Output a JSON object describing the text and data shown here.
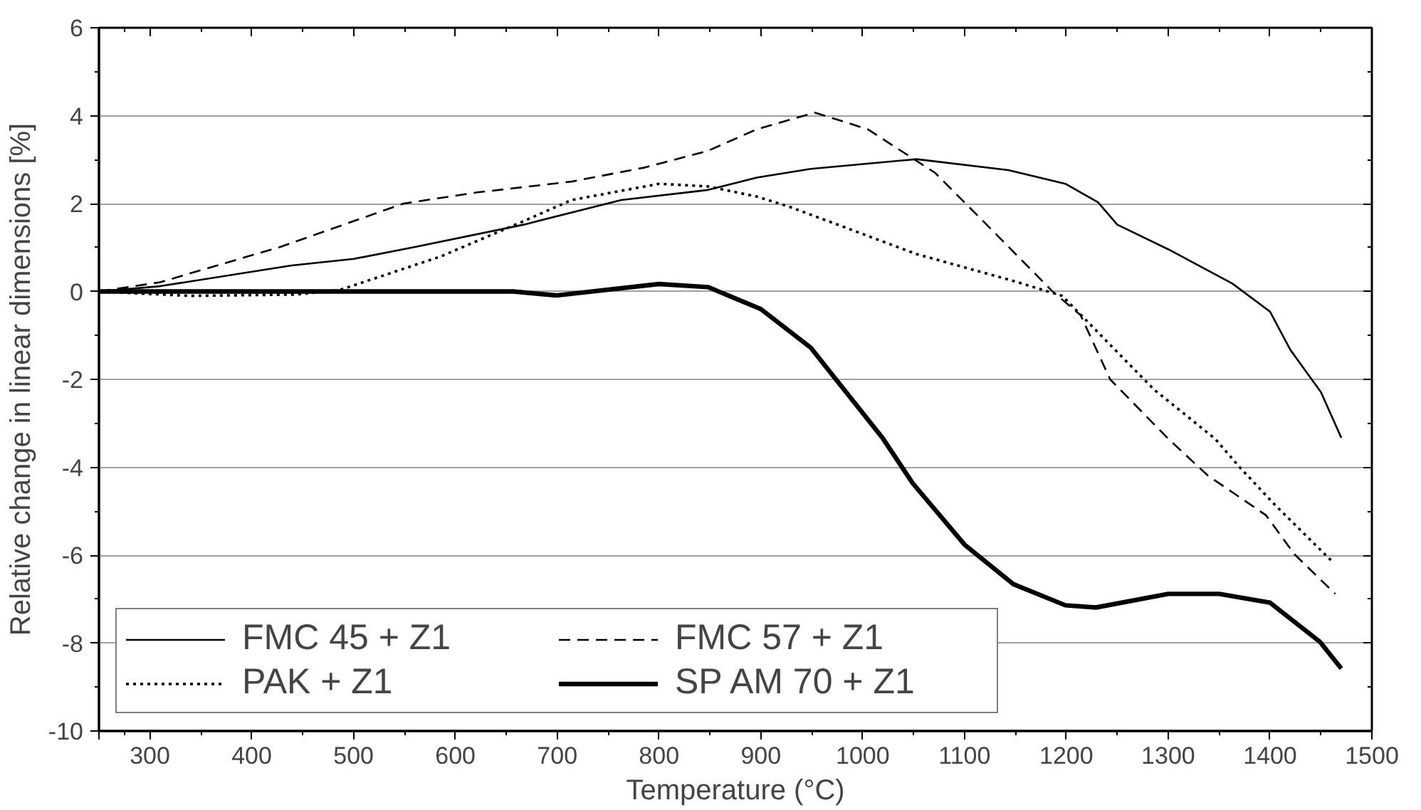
{
  "chart_data": {
    "type": "line",
    "xlabel": "Temperature (°C)",
    "ylabel": "Relative change in linear dimensions [%]",
    "xlim": [
      250,
      1500
    ],
    "xticks": [
      {
        "value": 250,
        "label": null
      },
      300,
      400,
      500,
      600,
      700,
      800,
      900,
      1000,
      1100,
      1200,
      1300,
      1400,
      1500
    ],
    "ylim": [
      -10,
      6
    ],
    "yticks": [
      -10,
      -8,
      -6,
      -4,
      -2,
      0,
      2,
      4,
      6
    ],
    "grid": "y",
    "legend": "bottom left",
    "series": [
      {
        "name": "FMC 45 + Z1",
        "color": "#000000",
        "line_style": "solid",
        "x": [
          250,
          310,
          439,
          500,
          562,
          667,
          763,
          848,
          896,
          949,
          1053,
          1143,
          1199,
          1231,
          1250,
          1300,
          1363,
          1400,
          1420,
          1450,
          1470
        ],
        "values": [
          0,
          0.12,
          0.59,
          0.74,
          1.02,
          1.52,
          2.08,
          2.31,
          2.59,
          2.79,
          3.01,
          2.76,
          2.45,
          2.03,
          1.52,
          0.96,
          0.18,
          -0.46,
          -1.33,
          -2.29,
          -3.33
        ]
      },
      {
        "name": "FMC 57 + Z1",
        "color": "#000000",
        "line_style": "dashed",
        "x": [
          250,
          310,
          429,
          549,
          620,
          714,
          786,
          848,
          896,
          953,
          1005,
          1071,
          1129,
          1186,
          1214,
          1243,
          1300,
          1339,
          1396,
          1424,
          1464
        ],
        "values": [
          0,
          0.21,
          1.02,
          2.0,
          2.25,
          2.5,
          2.82,
          3.2,
          3.69,
          4.07,
          3.69,
          2.7,
          1.35,
          0.01,
          -0.54,
          -2.0,
          -3.35,
          -4.19,
          -5.09,
          -5.98,
          -6.88
        ]
      },
      {
        "name": "PAK + Z1",
        "color": "#000000",
        "line_style": "dotted",
        "x": [
          250,
          339,
          443,
          486,
          586,
          667,
          714,
          800,
          848,
          896,
          929,
          1053,
          1148,
          1196,
          1234,
          1286,
          1346,
          1371,
          1405,
          1460
        ],
        "values": [
          0,
          -0.1,
          -0.07,
          0.03,
          0.8,
          1.6,
          2.08,
          2.45,
          2.39,
          2.16,
          1.92,
          0.85,
          0.24,
          -0.1,
          -1.0,
          -2.23,
          -3.35,
          -4.02,
          -4.86,
          -6.12
        ]
      },
      {
        "name": "SP AM 70 + Z1",
        "color": "#000000",
        "line_style": "solid",
        "x": [
          250,
          657,
          699,
          800,
          848,
          900,
          949,
          1020,
          1049,
          1100,
          1148,
          1199,
          1229,
          1300,
          1350,
          1400,
          1449,
          1470
        ],
        "values": [
          0,
          0,
          -0.09,
          0.17,
          0.1,
          -0.4,
          -1.28,
          -3.35,
          -4.36,
          -5.76,
          -6.66,
          -7.14,
          -7.19,
          -6.88,
          -6.88,
          -7.08,
          -7.97,
          -8.58
        ]
      }
    ]
  }
}
